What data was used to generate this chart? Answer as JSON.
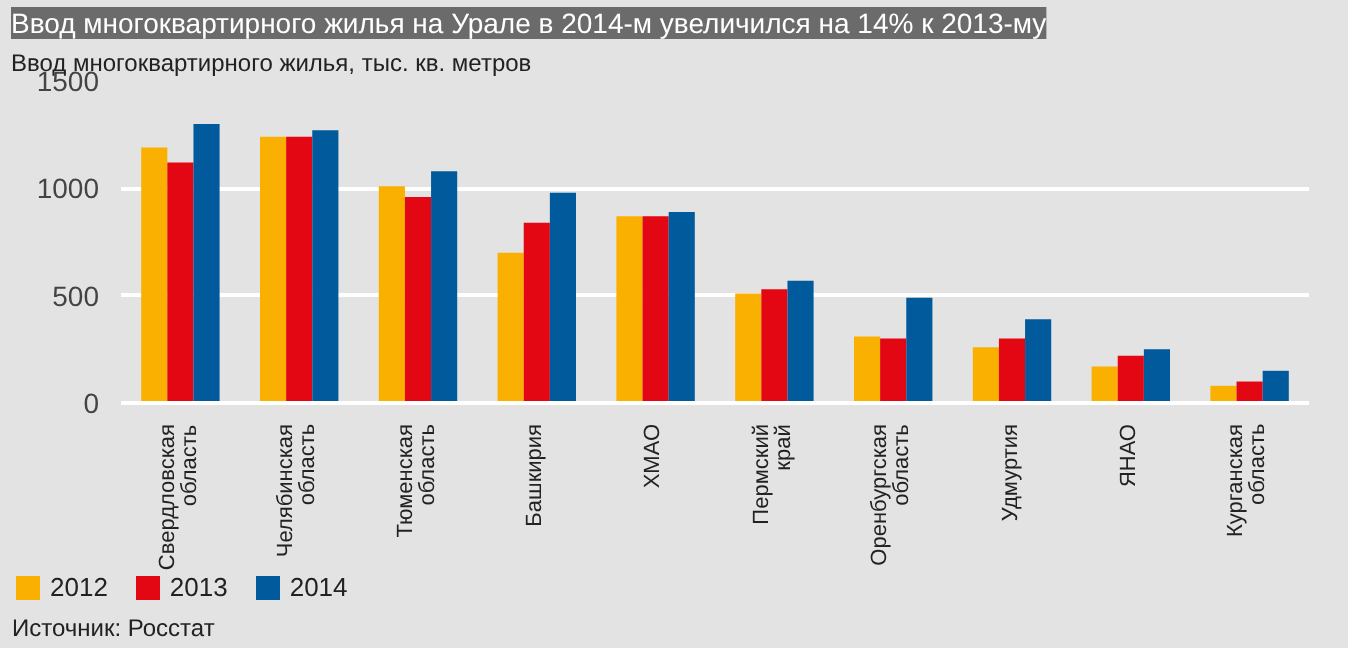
{
  "chart_data": {
    "type": "bar",
    "title": "Ввод многоквартирного жилья на Урале в 2014-м увеличился на 14% к 2013-му",
    "ylabel": "Ввод многоквартирного жилья, тыс. кв. метров",
    "categories": [
      "Свердловская область",
      "Челябинская область",
      "Тюменская область",
      "Башкирия",
      "ХМАО",
      "Пермский край",
      "Оренбургская область",
      "Удмуртия",
      "ЯНАО",
      "Курганская область"
    ],
    "series": [
      {
        "name": "2012",
        "color": "#f9b000",
        "values": [
          1190,
          1240,
          1010,
          700,
          870,
          510,
          310,
          260,
          170,
          80
        ]
      },
      {
        "name": "2013",
        "color": "#e30613",
        "values": [
          1120,
          1240,
          960,
          840,
          870,
          530,
          300,
          300,
          220,
          100
        ]
      },
      {
        "name": "2014",
        "color": "#005a9c",
        "values": [
          1300,
          1270,
          1080,
          980,
          890,
          570,
          490,
          390,
          250,
          150
        ]
      }
    ],
    "ylim": [
      0,
      1500
    ],
    "yticks": [
      0,
      500,
      1000,
      1500
    ],
    "grid": "y",
    "legend": "bottom left",
    "annotations": [
      "Источник: Росстат"
    ]
  }
}
